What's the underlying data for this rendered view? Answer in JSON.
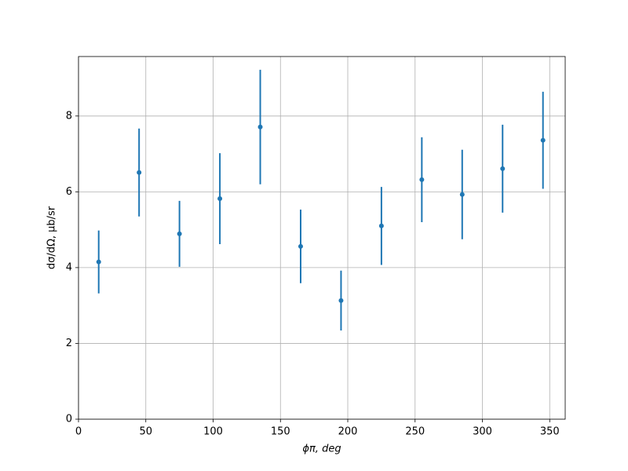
{
  "chart_data": {
    "type": "errorbar",
    "xlabel": "ϕπ, deg",
    "ylabel": "dσ/dΩ, μb/sr",
    "x": [
      15,
      45,
      75,
      105,
      135,
      165,
      195,
      225,
      255,
      285,
      315,
      345
    ],
    "series": [
      {
        "color": "#1f77b4",
        "values": [
          4.15,
          6.51,
          4.89,
          5.82,
          7.71,
          4.56,
          3.13,
          5.1,
          6.32,
          5.93,
          6.61,
          7.36
        ],
        "errors": [
          0.83,
          1.16,
          0.87,
          1.2,
          1.51,
          0.97,
          0.79,
          1.03,
          1.12,
          1.18,
          1.16,
          1.28
        ]
      }
    ],
    "xlim": [
      0,
      361.5
    ],
    "ylim": [
      0,
      9.57
    ],
    "xticks": [
      0,
      50,
      100,
      150,
      200,
      250,
      300,
      350
    ],
    "yticks": [
      0,
      2,
      4,
      6,
      8
    ],
    "grid": true
  }
}
